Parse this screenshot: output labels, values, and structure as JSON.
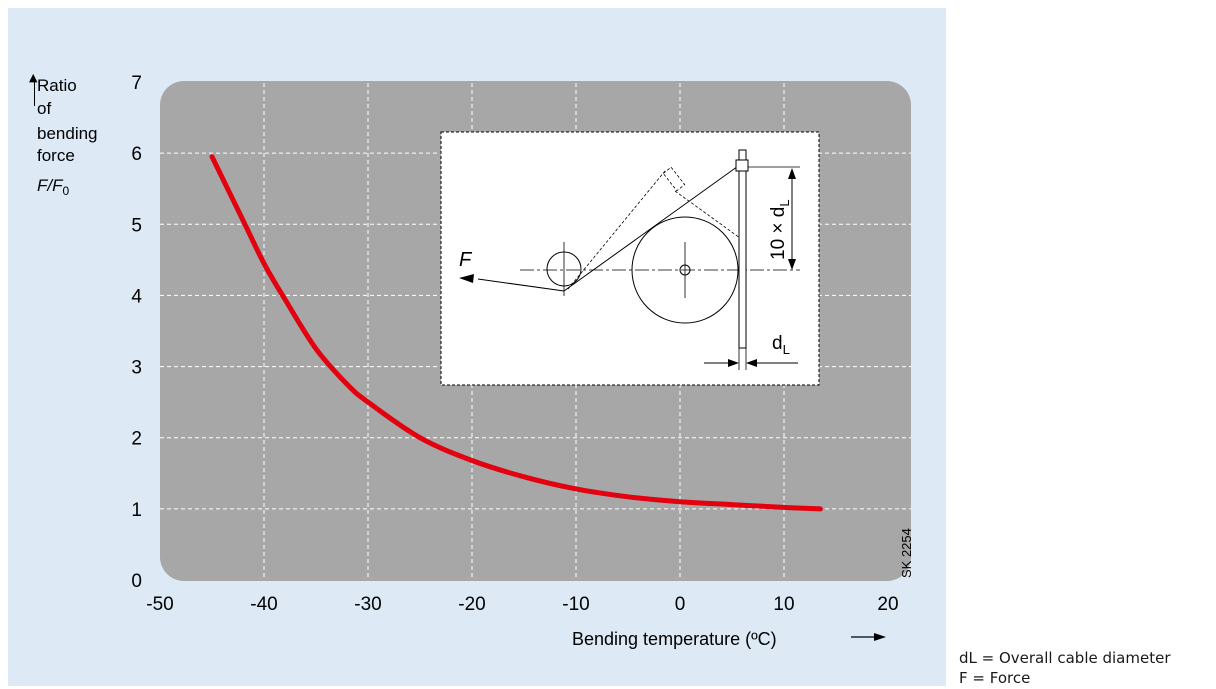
{
  "chart_data": {
    "type": "line",
    "title": "",
    "ylabel_lines": [
      "Ratio",
      "of",
      "bending",
      "force"
    ],
    "ylabel_symbol": "F/F",
    "ylabel_symbol_sub": "0",
    "xlabel": "Bending temperature (ºC)",
    "xlim": [
      -50,
      20
    ],
    "ylim": [
      0,
      7
    ],
    "x_ticks": [
      "-50",
      "-40",
      "-30",
      "-20",
      "-10",
      "0",
      "10",
      "20"
    ],
    "y_ticks": [
      "0",
      "1",
      "2",
      "3",
      "4",
      "5",
      "6",
      "7"
    ],
    "grid": true,
    "series": [
      {
        "color": "#e3000f",
        "x": [
          -45,
          -42,
          -40,
          -38,
          -35,
          -32,
          -30,
          -25,
          -20,
          -15,
          -10,
          -5,
          0,
          5,
          10,
          13.5
        ],
        "y": [
          5.95,
          5.05,
          4.45,
          3.95,
          3.25,
          2.75,
          2.5,
          2.0,
          1.68,
          1.45,
          1.28,
          1.17,
          1.1,
          1.06,
          1.02,
          1.0
        ]
      }
    ],
    "annotations": {
      "code": "SK 2254",
      "force": "F",
      "distance": "10 × d",
      "distance_sub": "L",
      "diameter": "d",
      "diameter_sub": "L"
    }
  },
  "legend": {
    "line1": "dL = Overall cable diameter",
    "line2": "F = Force"
  },
  "colors": {
    "panel": "#dde9f5",
    "plot": "#a7a7a7",
    "grid": "#ffffff",
    "curve": "#e3000f"
  }
}
